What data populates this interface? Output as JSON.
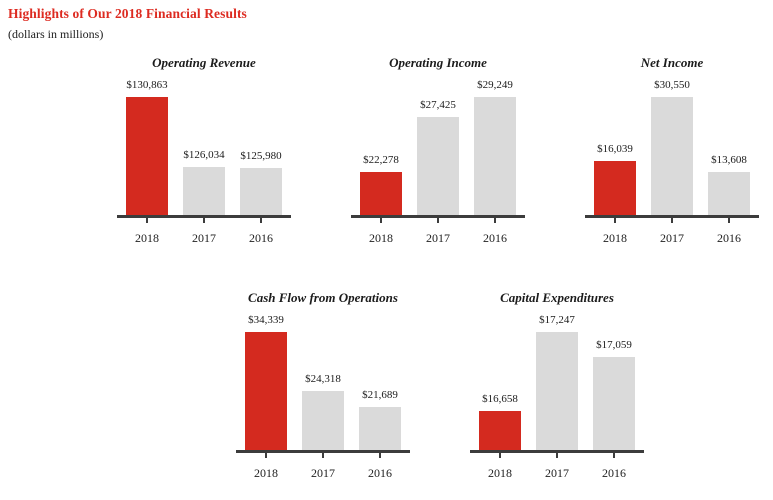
{
  "header": {
    "title": "Highlights of Our 2018 Financial Results",
    "subtitle": "(dollars in millions)"
  },
  "colors": {
    "title_red": "#dd2b21",
    "bar_highlight": "#d42a1f",
    "bar_default": "#dadada",
    "axis": "#3c3c3c",
    "text": "#1c1c1c"
  },
  "chart_data": [
    {
      "type": "bar",
      "title": "Operating Revenue",
      "categories": [
        "2018",
        "2017",
        "2016"
      ],
      "values": [
        130863,
        126034,
        125980
      ],
      "value_labels": [
        "$130,863",
        "$126,034",
        "$125,980"
      ],
      "highlight_category": "2018",
      "ylim": [
        122723,
        130863
      ],
      "grid": false,
      "legend": false
    },
    {
      "type": "bar",
      "title": "Operating Income",
      "categories": [
        "2018",
        "2017",
        "2016"
      ],
      "values": [
        22278,
        27425,
        29249
      ],
      "value_labels": [
        "$22,278",
        "$27,425",
        "$29,249"
      ],
      "highlight_category": "2018",
      "ylim": [
        18281,
        29249
      ],
      "grid": false,
      "legend": false
    },
    {
      "type": "bar",
      "title": "Net Income",
      "categories": [
        "2018",
        "2017",
        "2016"
      ],
      "values": [
        16039,
        30550,
        13608
      ],
      "value_labels": [
        "$16,039",
        "$30,550",
        "$13,608"
      ],
      "highlight_category": "2018",
      "ylim": [
        3895,
        30550
      ],
      "grid": false,
      "legend": false
    },
    {
      "type": "bar",
      "title": "Cash Flow from Operations",
      "categories": [
        "2018",
        "2017",
        "2016"
      ],
      "values": [
        34339,
        24318,
        21689
      ],
      "value_labels": [
        "$34,339",
        "$24,318",
        "$21,689"
      ],
      "highlight_category": "2018",
      "ylim": [
        14436,
        34339
      ],
      "grid": false,
      "legend": false
    },
    {
      "type": "bar",
      "title": "Capital Expenditures",
      "categories": [
        "2018",
        "2017",
        "2016"
      ],
      "values": [
        16658,
        17247,
        17059
      ],
      "value_labels": [
        "$16,658",
        "$17,247",
        "$17,059"
      ],
      "highlight_category": "2018",
      "ylim": [
        16367,
        17247
      ],
      "grid": false,
      "legend": false
    }
  ]
}
